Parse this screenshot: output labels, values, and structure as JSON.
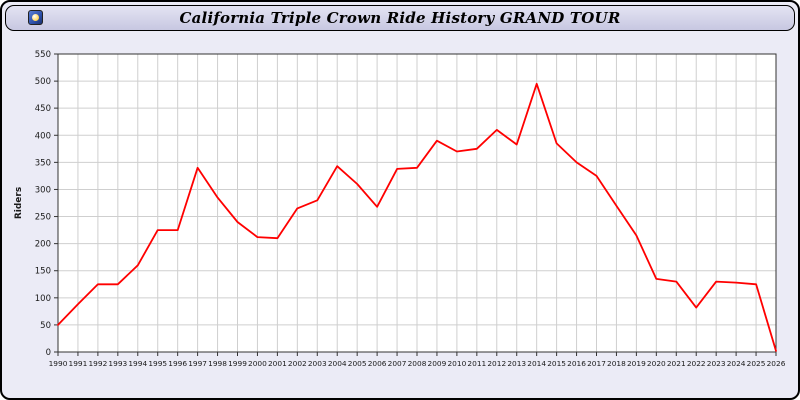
{
  "window": {
    "title": "California Triple Crown Ride History GRAND TOUR",
    "icon": "window-icon"
  },
  "colors": {
    "line": "#ff0000",
    "grid": "#cfcfcf",
    "plot_bg": "#ffffff",
    "plot_border": "#333333",
    "panel_bg": "#ebebf6",
    "tick_text": "#1a1a1a"
  },
  "chart_data": {
    "type": "line",
    "title": "California Triple Crown Ride History GRAND TOUR",
    "xlabel": "",
    "ylabel": "Riders",
    "ylim": [
      0,
      550
    ],
    "ytick_step": 50,
    "grid": true,
    "legend_position": "none",
    "line_color": "#ff0000",
    "x": [
      1990,
      1991,
      1992,
      1993,
      1994,
      1995,
      1996,
      1997,
      1998,
      1999,
      2000,
      2001,
      2002,
      2003,
      2004,
      2005,
      2006,
      2007,
      2008,
      2009,
      2010,
      2011,
      2012,
      2013,
      2014,
      2015,
      2016,
      2017,
      2018,
      2019,
      2020,
      2021,
      2022,
      2023,
      2024,
      2025,
      2026
    ],
    "series": [
      {
        "name": "Riders",
        "values": [
          50,
          88,
          125,
          125,
          160,
          225,
          225,
          340,
          285,
          240,
          212,
          210,
          265,
          280,
          343,
          310,
          268,
          338,
          340,
          390,
          370,
          375,
          410,
          383,
          495,
          385,
          350,
          325,
          270,
          215,
          135,
          130,
          82,
          130,
          128,
          125,
          2
        ]
      }
    ]
  }
}
